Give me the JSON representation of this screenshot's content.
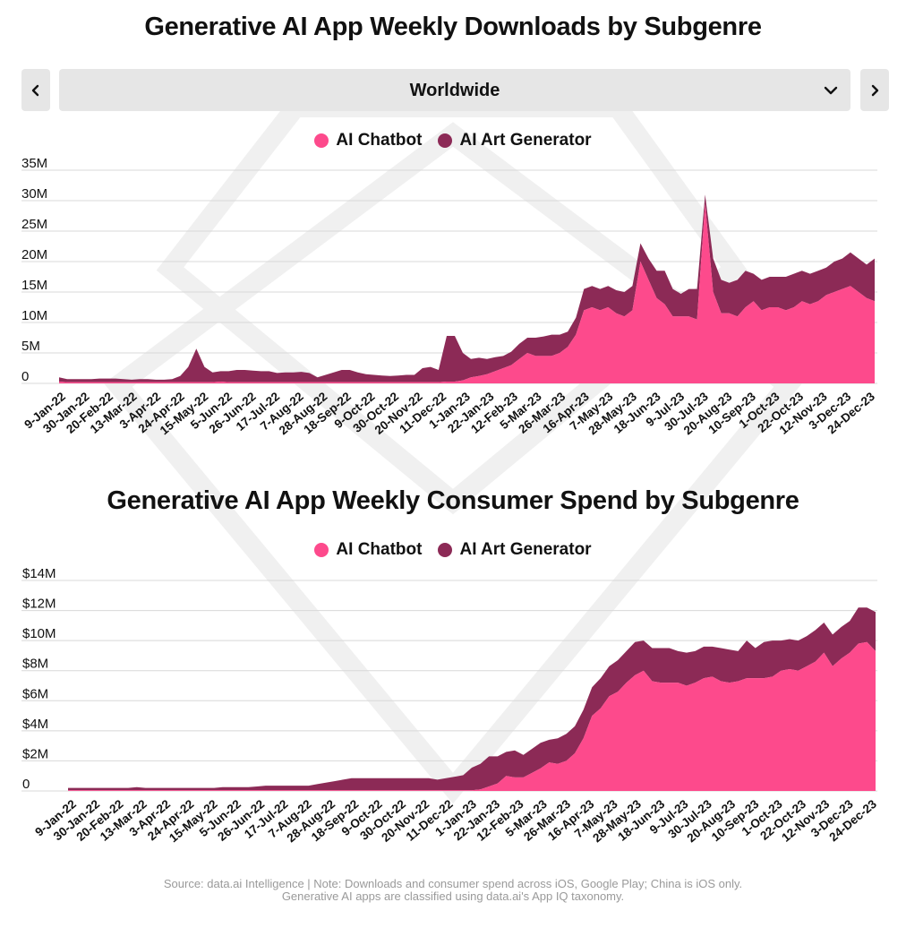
{
  "colors": {
    "chatbot": "#fd4a8c",
    "art": "#8c2a56",
    "grid": "#d8d8d8",
    "button_bg": "#e6e6e6"
  },
  "icons": {
    "prev": "chevron-left-icon",
    "next": "chevron-right-icon",
    "dropdown": "chevron-down-icon"
  },
  "region": {
    "selected": "Worldwide"
  },
  "charts": [
    {
      "title": "Generative AI App Weekly Downloads by Subgenre",
      "legend": [
        "AI Chatbot",
        "AI Art Generator"
      ]
    },
    {
      "title": "Generative AI App Weekly Consumer Spend by Subgenre",
      "legend": [
        "AI Chatbot",
        "AI Art Generator"
      ]
    }
  ],
  "footnote": {
    "line1": "Source: data.ai Intelligence | Note: Downloads and consumer spend across iOS, Google Play; China is iOS only.",
    "line2": "Generative AI apps are classified using data.ai's App IQ taxonomy."
  },
  "chart_data": [
    {
      "type": "area",
      "stacked": true,
      "title": "Generative AI App Weekly Downloads by Subgenre",
      "x_tick_labels": [
        "9-Jan-22",
        "30-Jan-22",
        "20-Feb-22",
        "13-Mar-22",
        "3-Apr-22",
        "24-Apr-22",
        "15-May-22",
        "5-Jun-22",
        "26-Jun-22",
        "17-Jul-22",
        "7-Aug-22",
        "28-Aug-22",
        "18-Sep-22",
        "9-Oct-22",
        "30-Oct-22",
        "20-Nov-22",
        "11-Dec-22",
        "1-Jan-23",
        "22-Jan-23",
        "12-Feb-23",
        "5-Mar-23",
        "26-Mar-23",
        "16-Apr-23",
        "7-May-23",
        "28-May-23",
        "18-Jun-23",
        "9-Jul-23",
        "30-Jul-23",
        "20-Aug-23",
        "10-Sep-23",
        "1-Oct-23",
        "22-Oct-23",
        "12-Nov-23",
        "3-Dec-23",
        "24-Dec-23"
      ],
      "y_tick_labels": [
        "0",
        "5M",
        "10M",
        "15M",
        "20M",
        "25M",
        "30M",
        "35M"
      ],
      "ylim": [
        0,
        35
      ],
      "grid": true,
      "legend_position": "top-center",
      "series": [
        {
          "name": "AI Chatbot",
          "values": [
            0.3,
            0.2,
            0.2,
            0.2,
            0.2,
            0.2,
            0.2,
            0.2,
            0.2,
            0.2,
            0.2,
            0.2,
            0.2,
            0.2,
            0.2,
            0.2,
            0.2,
            0.2,
            0.2,
            0.2,
            0.3,
            0.2,
            0.2,
            0.2,
            0.2,
            0.2,
            0.2,
            0.2,
            0.2,
            0.2,
            0.2,
            0.2,
            0.2,
            0.2,
            0.2,
            0.2,
            0.2,
            0.2,
            0.2,
            0.2,
            0.2,
            0.2,
            0.2,
            0.2,
            0.2,
            0.2,
            0.2,
            0.2,
            0.3,
            0.3,
            0.5,
            1.0,
            1.2,
            1.5,
            2.0,
            2.5,
            3.0,
            4.0,
            5.0,
            4.5,
            4.5,
            4.5,
            5.0,
            6.0,
            8.0,
            12.0,
            12.5,
            12.0,
            12.5,
            11.5,
            11.0,
            12.0,
            20.0,
            17.0,
            14.0,
            13.0,
            11.0,
            11.0,
            11.0,
            10.5,
            29.5,
            15.0,
            11.5,
            11.5,
            11.0,
            12.5,
            13.5,
            12.0,
            12.5,
            12.5,
            12.0,
            12.5,
            13.5,
            13.0,
            13.5,
            14.5,
            15.0,
            15.5,
            16.0,
            15.0,
            14.0,
            13.5
          ]
        },
        {
          "name": "AI Art Generator",
          "values": [
            0.7,
            0.5,
            0.5,
            0.5,
            0.5,
            0.6,
            0.6,
            0.6,
            0.5,
            0.4,
            0.5,
            0.5,
            0.4,
            0.4,
            0.5,
            1.0,
            2.5,
            5.5,
            2.5,
            1.6,
            1.7,
            1.8,
            2.0,
            2.0,
            1.9,
            1.8,
            1.8,
            1.5,
            1.6,
            1.6,
            1.7,
            1.5,
            0.8,
            1.2,
            1.6,
            2.0,
            2.0,
            1.6,
            1.3,
            1.2,
            1.1,
            1.0,
            1.1,
            1.2,
            1.2,
            2.3,
            2.5,
            2.0,
            7.5,
            7.5,
            4.5,
            3.0,
            3.0,
            2.5,
            2.3,
            2.0,
            2.2,
            2.5,
            2.5,
            3.0,
            3.2,
            3.5,
            3.0,
            2.5,
            2.8,
            3.5,
            3.5,
            3.5,
            3.5,
            3.8,
            4.0,
            4.0,
            3.0,
            3.5,
            4.5,
            5.5,
            4.5,
            3.7,
            4.5,
            5.0,
            1.5,
            5.5,
            5.5,
            5.0,
            6.0,
            6.0,
            4.5,
            5.0,
            5.0,
            5.0,
            5.5,
            5.5,
            5.0,
            5.0,
            5.0,
            4.5,
            5.0,
            5.0,
            5.5,
            5.5,
            5.5,
            7.0
          ]
        }
      ]
    },
    {
      "type": "area",
      "stacked": true,
      "title": "Generative AI App Weekly Consumer Spend by Subgenre",
      "x_tick_labels": [
        "9-Jan-22",
        "30-Jan-22",
        "20-Feb-22",
        "13-Mar-22",
        "3-Apr-22",
        "24-Apr-22",
        "15-May-22",
        "5-Jun-22",
        "26-Jun-22",
        "17-Jul-22",
        "7-Aug-22",
        "28-Aug-22",
        "18-Sep-22",
        "9-Oct-22",
        "30-Oct-22",
        "20-Nov-22",
        "11-Dec-22",
        "1-Jan-23",
        "22-Jan-23",
        "12-Feb-23",
        "5-Mar-23",
        "26-Mar-23",
        "16-Apr-23",
        "7-May-23",
        "28-May-23",
        "18-Jun-23",
        "9-Jul-23",
        "30-Jul-23",
        "20-Aug-23",
        "10-Sep-23",
        "1-Oct-23",
        "22-Oct-23",
        "12-Nov-23",
        "3-Dec-23",
        "24-Dec-23"
      ],
      "y_tick_labels": [
        "0",
        "$2M",
        "$4M",
        "$6M",
        "$8M",
        "$10M",
        "$12M",
        "$14M"
      ],
      "ylim": [
        0,
        14
      ],
      "grid": true,
      "legend_position": "top-center",
      "series": [
        {
          "name": "AI Chatbot",
          "values": [
            0.05,
            0.05,
            0.05,
            0.05,
            0.05,
            0.05,
            0.05,
            0.05,
            0.05,
            0.05,
            0.05,
            0.05,
            0.05,
            0.05,
            0.05,
            0.05,
            0.05,
            0.05,
            0.05,
            0.05,
            0.05,
            0.05,
            0.05,
            0.05,
            0.05,
            0.05,
            0.05,
            0.05,
            0.05,
            0.05,
            0.05,
            0.05,
            0.05,
            0.05,
            0.05,
            0.05,
            0.05,
            0.05,
            0.05,
            0.05,
            0.05,
            0.05,
            0.05,
            0.05,
            0.05,
            0.05,
            0.05,
            0.05,
            0.1,
            0.3,
            0.5,
            1.0,
            0.9,
            0.9,
            1.2,
            1.5,
            1.9,
            1.8,
            2.0,
            2.5,
            3.5,
            5.0,
            5.5,
            6.3,
            6.6,
            7.2,
            7.7,
            8.0,
            7.3,
            7.2,
            7.2,
            7.2,
            7.0,
            7.2,
            7.5,
            7.6,
            7.3,
            7.2,
            7.3,
            7.5,
            7.5,
            7.5,
            7.6,
            8.0,
            8.1,
            8.0,
            8.3,
            8.6,
            9.2,
            8.3,
            8.8,
            9.2,
            9.8,
            9.9,
            9.3
          ]
        },
        {
          "name": "AI Art Generator",
          "values": [
            0.15,
            0.15,
            0.15,
            0.15,
            0.15,
            0.15,
            0.15,
            0.15,
            0.2,
            0.15,
            0.15,
            0.15,
            0.15,
            0.15,
            0.15,
            0.15,
            0.15,
            0.15,
            0.2,
            0.2,
            0.2,
            0.2,
            0.25,
            0.3,
            0.3,
            0.3,
            0.3,
            0.3,
            0.3,
            0.4,
            0.5,
            0.6,
            0.7,
            0.8,
            0.8,
            0.8,
            0.8,
            0.8,
            0.8,
            0.8,
            0.8,
            0.8,
            0.8,
            0.7,
            0.8,
            0.9,
            1.0,
            1.5,
            1.7,
            2.0,
            1.8,
            1.6,
            1.8,
            1.5,
            1.6,
            1.7,
            1.5,
            1.7,
            1.8,
            1.8,
            1.9,
            1.9,
            2.0,
            2.0,
            2.1,
            2.1,
            2.2,
            2.0,
            2.2,
            2.3,
            2.3,
            2.1,
            2.2,
            2.1,
            2.1,
            2.0,
            2.2,
            2.2,
            2.0,
            2.5,
            2.0,
            2.4,
            2.4,
            2.0,
            2.0,
            2.0,
            2.0,
            2.1,
            2.0,
            2.1,
            2.1,
            2.1,
            2.4,
            2.3,
            2.6
          ]
        }
      ]
    }
  ]
}
